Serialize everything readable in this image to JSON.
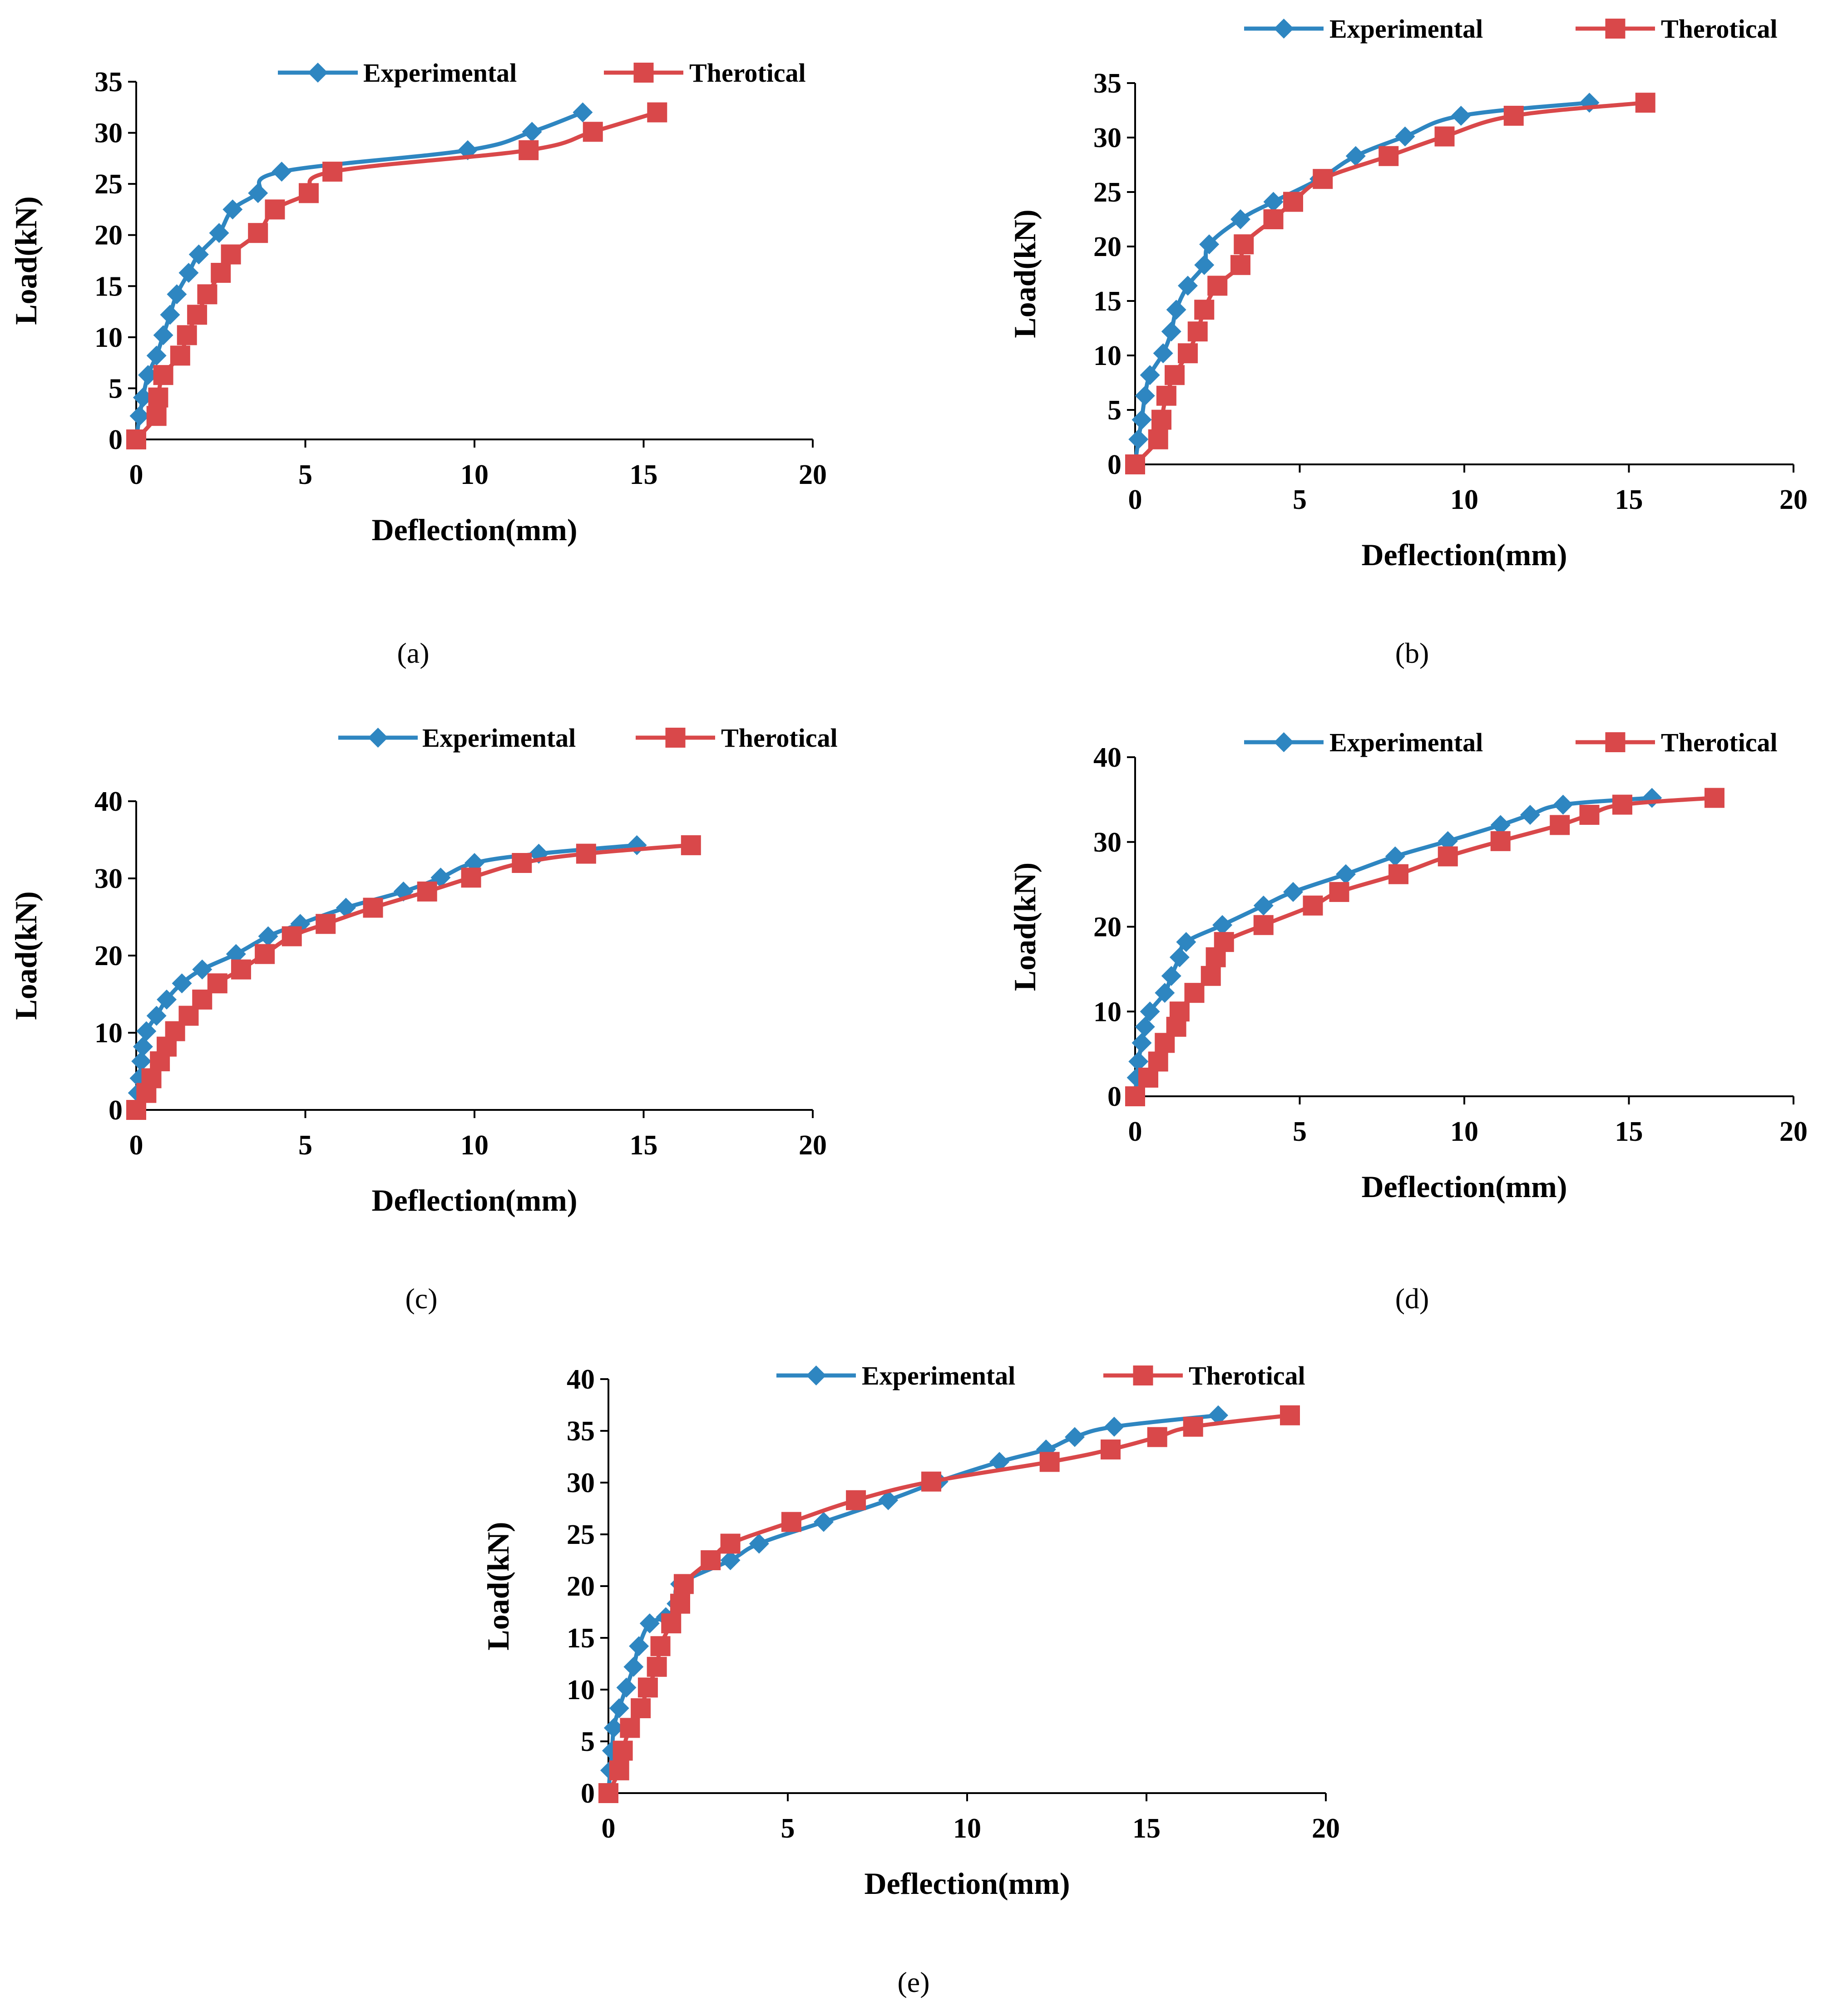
{
  "colors": {
    "experimental": "#2E86C1",
    "theoretical": "#D9484A"
  },
  "chart_data": [
    {
      "type": "line",
      "panel": "a",
      "caption": "(a)",
      "xlabel": "Deflection(mm)",
      "ylabel": "Load(kN)",
      "xlim": [
        0,
        20
      ],
      "ylim": [
        0,
        35
      ],
      "xticks": [
        0,
        5,
        10,
        15,
        20
      ],
      "yticks": [
        0,
        5,
        10,
        15,
        20,
        25,
        30,
        35
      ],
      "legend_position": "top",
      "series": [
        {
          "name": "Experimental",
          "marker": "diamond",
          "points": [
            [
              0,
              0
            ],
            [
              0.1,
              2.3
            ],
            [
              0.2,
              4.1
            ],
            [
              0.35,
              6.3
            ],
            [
              0.6,
              8.2
            ],
            [
              0.8,
              10.2
            ],
            [
              1.0,
              12.2
            ],
            [
              1.2,
              14.2
            ],
            [
              1.55,
              16.3
            ],
            [
              1.85,
              18.1
            ],
            [
              2.45,
              20.2
            ],
            [
              2.85,
              22.5
            ],
            [
              3.6,
              24.1
            ],
            [
              4.3,
              26.2
            ],
            [
              9.8,
              28.3
            ],
            [
              11.7,
              30.1
            ],
            [
              13.2,
              32.0
            ]
          ]
        },
        {
          "name": "Therotical",
          "marker": "square",
          "points": [
            [
              0,
              0
            ],
            [
              0.6,
              2.3
            ],
            [
              0.65,
              4.1
            ],
            [
              0.8,
              6.3
            ],
            [
              1.3,
              8.2
            ],
            [
              1.5,
              10.2
            ],
            [
              1.8,
              12.2
            ],
            [
              2.1,
              14.2
            ],
            [
              2.5,
              16.3
            ],
            [
              2.8,
              18.1
            ],
            [
              3.6,
              20.2
            ],
            [
              4.1,
              22.5
            ],
            [
              5.1,
              24.1
            ],
            [
              5.8,
              26.2
            ],
            [
              11.6,
              28.3
            ],
            [
              13.5,
              30.1
            ],
            [
              15.4,
              32.0
            ]
          ]
        }
      ]
    },
    {
      "type": "line",
      "panel": "b",
      "caption": "(b)",
      "xlabel": "Deflection(mm)",
      "ylabel": "Load(kN)",
      "xlim": [
        0,
        20
      ],
      "ylim": [
        0,
        35
      ],
      "xticks": [
        0,
        5,
        10,
        15,
        20
      ],
      "yticks": [
        0,
        5,
        10,
        15,
        20,
        25,
        30,
        35
      ],
      "legend_position": "top",
      "series": [
        {
          "name": "Experimental",
          "marker": "diamond",
          "points": [
            [
              0,
              0
            ],
            [
              0.1,
              2.3
            ],
            [
              0.2,
              4.1
            ],
            [
              0.3,
              6.3
            ],
            [
              0.45,
              8.2
            ],
            [
              0.85,
              10.2
            ],
            [
              1.1,
              12.2
            ],
            [
              1.25,
              14.2
            ],
            [
              1.6,
              16.4
            ],
            [
              2.1,
              18.3
            ],
            [
              2.25,
              20.2
            ],
            [
              3.2,
              22.5
            ],
            [
              4.2,
              24.1
            ],
            [
              5.6,
              26.2
            ],
            [
              6.7,
              28.3
            ],
            [
              8.2,
              30.1
            ],
            [
              9.9,
              32.0
            ],
            [
              13.8,
              33.2
            ]
          ]
        },
        {
          "name": "Therotical",
          "marker": "square",
          "points": [
            [
              0,
              0
            ],
            [
              0.7,
              2.3
            ],
            [
              0.8,
              4.1
            ],
            [
              0.95,
              6.3
            ],
            [
              1.2,
              8.2
            ],
            [
              1.6,
              10.2
            ],
            [
              1.9,
              12.2
            ],
            [
              2.1,
              14.2
            ],
            [
              2.5,
              16.4
            ],
            [
              3.2,
              18.3
            ],
            [
              3.3,
              20.2
            ],
            [
              4.2,
              22.5
            ],
            [
              4.8,
              24.1
            ],
            [
              5.7,
              26.2
            ],
            [
              7.7,
              28.3
            ],
            [
              9.4,
              30.1
            ],
            [
              11.5,
              32.0
            ],
            [
              15.5,
              33.2
            ]
          ]
        }
      ]
    },
    {
      "type": "line",
      "panel": "c",
      "caption": "(c)",
      "xlabel": "Deflection(mm)",
      "ylabel": "Load(kN)",
      "xlim": [
        0,
        20
      ],
      "ylim": [
        0,
        40
      ],
      "xticks": [
        0,
        5,
        10,
        15,
        20
      ],
      "yticks": [
        0,
        10,
        20,
        30,
        40
      ],
      "legend_position": "top",
      "series": [
        {
          "name": "Experimental",
          "marker": "diamond",
          "points": [
            [
              0,
              0
            ],
            [
              0.05,
              2.2
            ],
            [
              0.1,
              4.1
            ],
            [
              0.15,
              6.3
            ],
            [
              0.2,
              8.2
            ],
            [
              0.3,
              10.2
            ],
            [
              0.6,
              12.2
            ],
            [
              0.9,
              14.3
            ],
            [
              1.35,
              16.4
            ],
            [
              1.95,
              18.2
            ],
            [
              2.95,
              20.2
            ],
            [
              3.9,
              22.5
            ],
            [
              4.85,
              24.1
            ],
            [
              6.2,
              26.2
            ],
            [
              7.9,
              28.3
            ],
            [
              9.0,
              30.1
            ],
            [
              10.0,
              32.0
            ],
            [
              11.9,
              33.2
            ],
            [
              14.8,
              34.3
            ]
          ]
        },
        {
          "name": "Therotical",
          "marker": "square",
          "points": [
            [
              0,
              0
            ],
            [
              0.3,
              2.2
            ],
            [
              0.45,
              4.1
            ],
            [
              0.7,
              6.3
            ],
            [
              0.9,
              8.2
            ],
            [
              1.15,
              10.2
            ],
            [
              1.55,
              12.2
            ],
            [
              1.95,
              14.3
            ],
            [
              2.4,
              16.4
            ],
            [
              3.1,
              18.2
            ],
            [
              3.8,
              20.2
            ],
            [
              4.6,
              22.5
            ],
            [
              5.6,
              24.1
            ],
            [
              7.0,
              26.2
            ],
            [
              8.6,
              28.3
            ],
            [
              9.9,
              30.1
            ],
            [
              11.4,
              32.0
            ],
            [
              13.3,
              33.2
            ],
            [
              16.4,
              34.3
            ]
          ]
        }
      ]
    },
    {
      "type": "line",
      "panel": "d",
      "caption": "(d)",
      "xlabel": "Deflection(mm)",
      "ylabel": "Load(kN)",
      "xlim": [
        0,
        20
      ],
      "ylim": [
        0,
        40
      ],
      "xticks": [
        0,
        5,
        10,
        15,
        20
      ],
      "yticks": [
        0,
        10,
        20,
        30,
        40
      ],
      "legend_position": "top",
      "series": [
        {
          "name": "Experimental",
          "marker": "diamond",
          "points": [
            [
              0,
              0
            ],
            [
              0.05,
              2.2
            ],
            [
              0.1,
              4.1
            ],
            [
              0.2,
              6.3
            ],
            [
              0.3,
              8.2
            ],
            [
              0.45,
              10.0
            ],
            [
              0.9,
              12.2
            ],
            [
              1.1,
              14.2
            ],
            [
              1.35,
              16.4
            ],
            [
              1.55,
              18.2
            ],
            [
              2.65,
              20.2
            ],
            [
              3.9,
              22.5
            ],
            [
              4.8,
              24.1
            ],
            [
              6.4,
              26.2
            ],
            [
              7.9,
              28.3
            ],
            [
              9.5,
              30.1
            ],
            [
              11.1,
              32.0
            ],
            [
              12.0,
              33.2
            ],
            [
              13.0,
              34.4
            ],
            [
              15.7,
              35.2
            ]
          ]
        },
        {
          "name": "Therotical",
          "marker": "square",
          "points": [
            [
              0,
              0
            ],
            [
              0.4,
              2.2
            ],
            [
              0.7,
              4.1
            ],
            [
              0.9,
              6.3
            ],
            [
              1.25,
              8.2
            ],
            [
              1.35,
              10.0
            ],
            [
              1.8,
              12.2
            ],
            [
              2.3,
              14.2
            ],
            [
              2.45,
              16.4
            ],
            [
              2.7,
              18.2
            ],
            [
              3.9,
              20.2
            ],
            [
              5.4,
              22.5
            ],
            [
              6.2,
              24.1
            ],
            [
              8.0,
              26.2
            ],
            [
              9.5,
              28.3
            ],
            [
              11.1,
              30.1
            ],
            [
              12.9,
              32.0
            ],
            [
              13.8,
              33.2
            ],
            [
              14.8,
              34.4
            ],
            [
              17.6,
              35.2
            ]
          ]
        }
      ]
    },
    {
      "type": "line",
      "panel": "e",
      "caption": "(e)",
      "xlabel": "Deflection(mm)",
      "ylabel": "Load(kN)",
      "xlim": [
        0,
        20
      ],
      "ylim": [
        0,
        40
      ],
      "xticks": [
        0,
        5,
        10,
        15,
        20
      ],
      "yticks": [
        0,
        5,
        10,
        15,
        20,
        25,
        30,
        35,
        40
      ],
      "legend_position": "top",
      "series": [
        {
          "name": "Experimental",
          "marker": "diamond",
          "points": [
            [
              0,
              0
            ],
            [
              0.05,
              2.2
            ],
            [
              0.1,
              4.1
            ],
            [
              0.15,
              6.3
            ],
            [
              0.3,
              8.2
            ],
            [
              0.5,
              10.2
            ],
            [
              0.7,
              12.2
            ],
            [
              0.85,
              14.2
            ],
            [
              1.15,
              16.4
            ],
            [
              1.6,
              17.0
            ],
            [
              1.9,
              18.3
            ],
            [
              2.0,
              20.2
            ],
            [
              3.4,
              22.5
            ],
            [
              4.2,
              24.1
            ],
            [
              6.0,
              26.2
            ],
            [
              7.8,
              28.3
            ],
            [
              9.2,
              30.1
            ],
            [
              10.9,
              32.0
            ],
            [
              12.2,
              33.2
            ],
            [
              13.0,
              34.4
            ],
            [
              14.1,
              35.4
            ],
            [
              17.0,
              36.5
            ]
          ]
        },
        {
          "name": "Therotical",
          "marker": "square",
          "points": [
            [
              0,
              0
            ],
            [
              0.3,
              2.2
            ],
            [
              0.4,
              4.1
            ],
            [
              0.6,
              6.3
            ],
            [
              0.9,
              8.2
            ],
            [
              1.1,
              10.2
            ],
            [
              1.35,
              12.2
            ],
            [
              1.45,
              14.2
            ],
            [
              1.75,
              16.4
            ],
            [
              2.0,
              18.3
            ],
            [
              2.1,
              20.2
            ],
            [
              2.85,
              22.5
            ],
            [
              3.4,
              24.1
            ],
            [
              5.1,
              26.2
            ],
            [
              6.9,
              28.3
            ],
            [
              9.0,
              30.1
            ],
            [
              12.3,
              32.0
            ],
            [
              14.0,
              33.2
            ],
            [
              15.3,
              34.4
            ],
            [
              16.3,
              35.4
            ],
            [
              19.0,
              36.5
            ]
          ]
        }
      ]
    }
  ]
}
